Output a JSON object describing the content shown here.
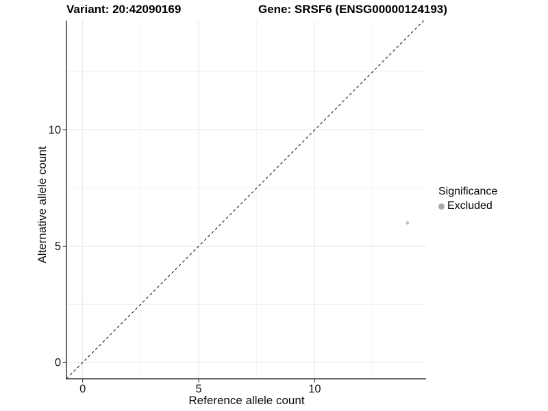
{
  "chart_data": {
    "type": "scatter",
    "titles": {
      "variant": "Variant: 20:42090169",
      "gene": "Gene: SRSF6 (ENSG00000124193)"
    },
    "xlabel": "Reference allele count",
    "ylabel": "Alternative allele count",
    "xlim": [
      -0.7,
      14.8
    ],
    "ylim": [
      -0.7,
      14.7
    ],
    "x_ticks": [
      0,
      5,
      10
    ],
    "y_ticks": [
      0,
      5,
      10
    ],
    "x_tick_labels": [
      "0",
      "5",
      "10"
    ],
    "y_tick_labels": [
      "0",
      "5",
      "10"
    ],
    "x_minor_ticks": [
      2.5,
      7.5,
      12.5
    ],
    "y_minor_ticks": [
      2.5,
      7.5,
      12.5
    ],
    "grid": true,
    "grid_color_major": "#e7e7e7",
    "grid_color_minor": "#f2f2f2",
    "axis_color": "#383838",
    "tick_label_color": "#1a1a1a",
    "series": [
      {
        "name": "Excluded",
        "color": "#bdbdbd",
        "points": [
          {
            "x": 14,
            "y": 6
          }
        ]
      }
    ],
    "identity_line": {
      "type": "abline y = x",
      "style": "dashed",
      "color": "#1a1a1a",
      "from": -0.7,
      "to": 14.7
    },
    "legend": {
      "title": "Significance",
      "position": "right",
      "items": [
        {
          "label": "Excluded",
          "color": "#a8a8a8"
        }
      ]
    }
  }
}
